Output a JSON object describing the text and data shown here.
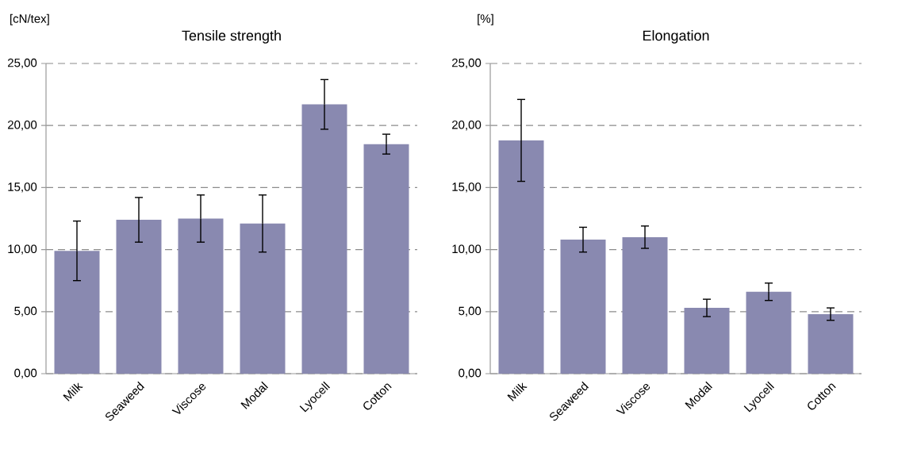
{
  "chart_data": [
    {
      "type": "bar",
      "title": "Tensile strength",
      "ylabel": "[cN/tex]",
      "categories": [
        "Milk",
        "Seaweed",
        "Viscose",
        "Modal",
        "Lyocell",
        "Cotton"
      ],
      "values": [
        9.9,
        12.4,
        12.5,
        12.1,
        21.7,
        18.5
      ],
      "errors": [
        2.4,
        1.8,
        1.9,
        2.3,
        2.0,
        0.8
      ],
      "color": "#8989b0",
      "ylim": [
        0,
        25
      ],
      "yticks": [
        {
          "value": 0,
          "label": "0,00"
        },
        {
          "value": 5,
          "label": "5,00"
        },
        {
          "value": 10,
          "label": "10,00"
        },
        {
          "value": 15,
          "label": "15,00"
        },
        {
          "value": 20,
          "label": "20,00"
        },
        {
          "value": 25,
          "label": "25,00"
        }
      ],
      "grid": "y"
    },
    {
      "type": "bar",
      "title": "Elongation",
      "ylabel": "[%]",
      "categories": [
        "Milk",
        "Seaweed",
        "Viscose",
        "Modal",
        "Lyocell",
        "Cotton"
      ],
      "values": [
        18.8,
        10.8,
        11.0,
        5.3,
        6.6,
        4.8
      ],
      "errors": [
        3.3,
        1.0,
        0.9,
        0.7,
        0.7,
        0.5
      ],
      "color": "#8989b0",
      "ylim": [
        0,
        25
      ],
      "yticks": [
        {
          "value": 0,
          "label": "0,00"
        },
        {
          "value": 5,
          "label": "5,00"
        },
        {
          "value": 10,
          "label": "10,00"
        },
        {
          "value": 15,
          "label": "15,00"
        },
        {
          "value": 20,
          "label": "20,00"
        },
        {
          "value": 25,
          "label": "25,00"
        }
      ],
      "grid": "y"
    }
  ]
}
